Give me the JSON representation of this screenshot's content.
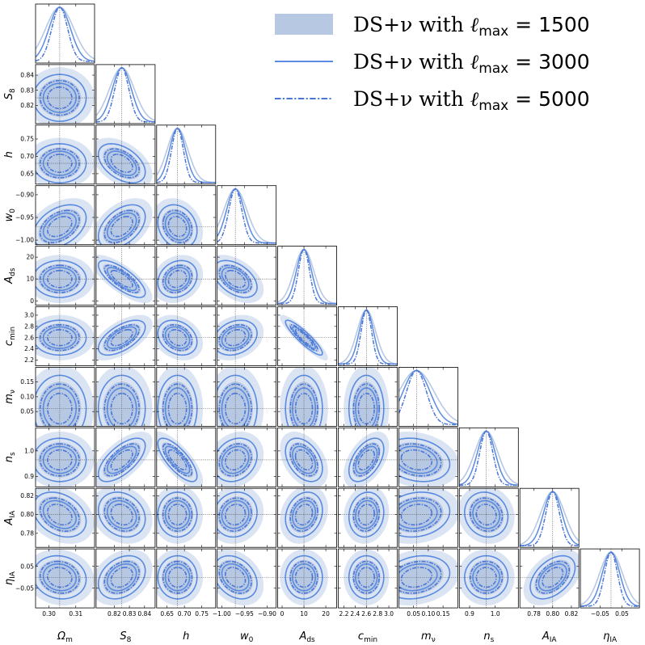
{
  "chart_data": {
    "type": "triangle",
    "parameters": [
      {
        "key": "Om",
        "label": "Ω",
        "sub": "m",
        "range": [
          0.295,
          0.317
        ],
        "truth": 0.304,
        "sigma": 0.0035,
        "ticks": [
          0.3,
          0.31
        ],
        "tick_labels": [
          "0.30",
          "0.31"
        ]
      },
      {
        "key": "S8",
        "label": "S",
        "sub": "8",
        "range": [
          0.808,
          0.847
        ],
        "truth": 0.825,
        "sigma": 0.0055,
        "ticks": [
          0.82,
          0.83,
          0.84
        ],
        "tick_labels": [
          "0.82",
          "0.83",
          "0.84"
        ]
      },
      {
        "key": "h",
        "label": "h",
        "sub": "",
        "range": [
          0.62,
          0.79
        ],
        "truth": 0.68,
        "sigma": 0.02,
        "ticks": [
          0.65,
          0.7,
          0.75
        ],
        "tick_labels": [
          "0.65",
          "0.70",
          "0.75"
        ]
      },
      {
        "key": "w0",
        "label": "w",
        "sub": "0",
        "range": [
          -1.01,
          -0.88
        ],
        "truth": -0.97,
        "sigma": 0.017,
        "ticks": [
          -1.0,
          -0.95,
          -0.9
        ],
        "tick_labels": [
          "−1.00",
          "−0.95",
          "−0.90"
        ]
      },
      {
        "key": "Ads",
        "label": "A",
        "sub": "ds",
        "range": [
          -2,
          25
        ],
        "truth": 10,
        "sigma": 3.0,
        "ticks": [
          0,
          10,
          20
        ],
        "tick_labels": [
          "0",
          "10",
          "20"
        ]
      },
      {
        "key": "cmin",
        "label": "c",
        "sub": "min",
        "range": [
          2.1,
          3.15
        ],
        "truth": 2.6,
        "sigma": 0.11,
        "ticks": [
          2.2,
          2.4,
          2.6,
          2.8,
          3.0
        ],
        "tick_labels": [
          "2.2",
          "2.4",
          "2.6",
          "2.8",
          "3.0"
        ]
      },
      {
        "key": "mnu",
        "label": "m",
        "sub": "ν",
        "range": [
          0.0,
          0.2
        ],
        "truth": 0.06,
        "sigma": 0.04,
        "ticks": [
          0.05,
          0.1,
          0.15
        ],
        "tick_labels": [
          "0.05",
          "0.10",
          "0.15"
        ]
      },
      {
        "key": "ns",
        "label": "n",
        "sub": "s",
        "range": [
          0.86,
          1.09
        ],
        "truth": 0.965,
        "sigma": 0.03,
        "ticks": [
          0.9,
          1.0
        ],
        "tick_labels": [
          "0.9",
          "1.0"
        ]
      },
      {
        "key": "AIA",
        "label": "A",
        "sub": "IA",
        "range": [
          0.765,
          0.828
        ],
        "truth": 0.8,
        "sigma": 0.0085,
        "ticks": [
          0.78,
          0.8,
          0.82
        ],
        "tick_labels": [
          "0.78",
          "0.80",
          "0.82"
        ]
      },
      {
        "key": "etaIA",
        "label": "η",
        "sub": "IA",
        "range": [
          -0.14,
          0.13
        ],
        "truth": 0.0,
        "sigma": 0.035,
        "ticks": [
          -0.05,
          0.05
        ],
        "tick_labels": [
          "−0.05",
          "0.05"
        ]
      }
    ],
    "correlations": [
      [
        1,
        0,
        0,
        0.4,
        0,
        0,
        0,
        0,
        -0.3,
        -0.1
      ],
      [
        0,
        1,
        -0.45,
        0.45,
        -0.75,
        0.6,
        0,
        0.65,
        -0.2,
        0.3
      ],
      [
        0,
        -0.45,
        1,
        -0.2,
        0.2,
        -0.25,
        0,
        -0.75,
        0,
        0
      ],
      [
        0.4,
        0.45,
        -0.2,
        1,
        -0.45,
        0.25,
        0,
        0.2,
        0.1,
        -0.3
      ],
      [
        0,
        -0.75,
        0.2,
        -0.45,
        1,
        -0.9,
        0,
        -0.4,
        0.2,
        0
      ],
      [
        0,
        0.6,
        -0.25,
        0.25,
        -0.9,
        1,
        0,
        0.5,
        0.1,
        0
      ],
      [
        0,
        0,
        0,
        0,
        0,
        0,
        1,
        -0.2,
        0.15,
        0.2
      ],
      [
        0,
        0.65,
        -0.75,
        0.2,
        -0.4,
        0.5,
        -0.2,
        1,
        -0.1,
        0
      ],
      [
        -0.3,
        -0.2,
        0,
        0.1,
        0.2,
        0.1,
        0.15,
        -0.1,
        1,
        0.45
      ],
      [
        -0.1,
        0.3,
        0,
        -0.3,
        0,
        0,
        0.2,
        0,
        0.45,
        1
      ]
    ],
    "series": [
      {
        "name": "DS+ν with ℓmax = 1500",
        "name_main": "DS+ν with ",
        "name_ell": "ℓ",
        "name_sub": "max",
        "name_value": " = 1500",
        "style": "filled",
        "color": "#b7c8e3",
        "width_scale": 1.5
      },
      {
        "name": "DS+ν with ℓmax = 3000",
        "name_main": "DS+ν with ",
        "name_ell": "ℓ",
        "name_sub": "max",
        "name_value": " = 3000",
        "style": "solid",
        "color": "#5b8be0",
        "width_scale": 1.15
      },
      {
        "name": "DS+ν with ℓmax = 5000",
        "name_main": "DS+ν with ",
        "name_ell": "ℓ",
        "name_sub": "max",
        "name_value": " = 5000",
        "style": "dashdot",
        "color": "#4a76d8",
        "width_scale": 0.85
      }
    ],
    "legend_position": "top-right",
    "truth_lines": true
  }
}
